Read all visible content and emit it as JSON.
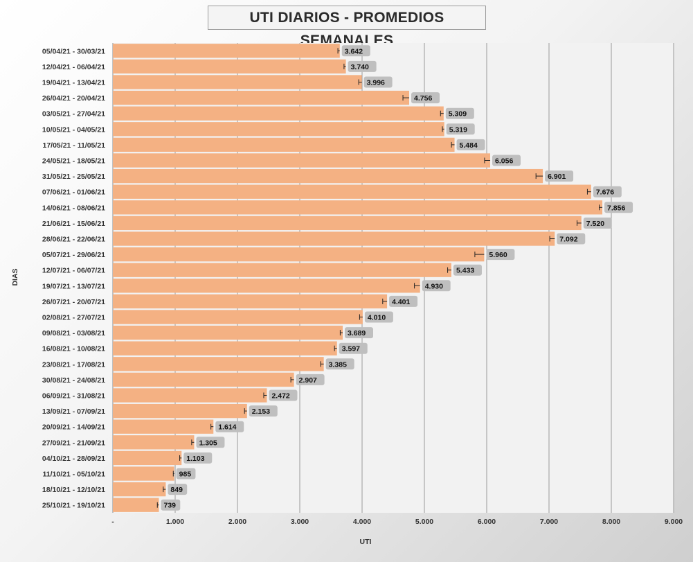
{
  "chart_data": {
    "type": "bar",
    "orientation": "horizontal",
    "title": "UTI DIARIOS - PROMEDIOS SEMANALES",
    "xlabel": "UTI",
    "ylabel": "DIAS",
    "xlim": [
      0,
      9000
    ],
    "x_ticks": [
      0,
      1000,
      2000,
      3000,
      4000,
      5000,
      6000,
      7000,
      8000,
      9000
    ],
    "x_tick_labels": [
      "-",
      "1.000",
      "2.000",
      "3.000",
      "4.000",
      "5.000",
      "6.000",
      "7.000",
      "8.000",
      "9.000"
    ],
    "grid": "vertical",
    "bar_color": "#F4B183",
    "label_bg_color": "#BFBFBF",
    "error_bars": true,
    "categories": [
      "05/04/21 - 30/03/21",
      "12/04/21 - 06/04/21",
      "19/04/21 - 13/04/21",
      "26/04/21 - 20/04/21",
      "03/05/21 - 27/04/21",
      "10/05/21 - 04/05/21",
      "17/05/21 - 11/05/21",
      "24/05/21 - 18/05/21",
      "31/05/21 - 25/05/21",
      "07/06/21 - 01/06/21",
      "14/06/21 - 08/06/21",
      "21/06/21 - 15/06/21",
      "28/06/21 - 22/06/21",
      "05/07/21 - 29/06/21",
      "12/07/21 - 06/07/21",
      "19/07/21 - 13/07/21",
      "26/07/21 - 20/07/21",
      "02/08/21 - 27/07/21",
      "09/08/21 - 03/08/21",
      "16/08/21 - 10/08/21",
      "23/08/21 - 17/08/21",
      "30/08/21 - 24/08/21",
      "06/09/21 - 31/08/21",
      "13/09/21 - 07/09/21",
      "20/09/21 - 14/09/21",
      "27/09/21 - 21/09/21",
      "04/10/21 - 28/09/21",
      "11/10/21 - 05/10/21",
      "18/10/21 - 12/10/21",
      "25/10/21 - 19/10/21"
    ],
    "values": [
      3642,
      3740,
      3996,
      4756,
      5309,
      5319,
      5484,
      6056,
      6901,
      7676,
      7856,
      7520,
      7092,
      5960,
      5433,
      4930,
      4401,
      4010,
      3689,
      3597,
      3385,
      2907,
      2472,
      2153,
      1614,
      1305,
      1103,
      985,
      849,
      739
    ],
    "value_labels": [
      "3.642",
      "3.740",
      "3.996",
      "4.756",
      "5.309",
      "5.319",
      "5.484",
      "6.056",
      "6.901",
      "7.676",
      "7.856",
      "7.520",
      "7.092",
      "5.960",
      "5.433",
      "4.930",
      "4.401",
      "4.010",
      "3.689",
      "3.597",
      "3.385",
      "2.907",
      "2.472",
      "2.153",
      "1.614",
      "1.305",
      "1.103",
      "985",
      "849",
      "739"
    ],
    "error_minus": [
      30,
      30,
      50,
      100,
      50,
      30,
      50,
      90,
      110,
      60,
      50,
      70,
      80,
      150,
      60,
      90,
      70,
      50,
      40,
      40,
      50,
      50,
      50,
      40,
      40,
      40,
      30,
      15,
      40,
      25
    ]
  }
}
